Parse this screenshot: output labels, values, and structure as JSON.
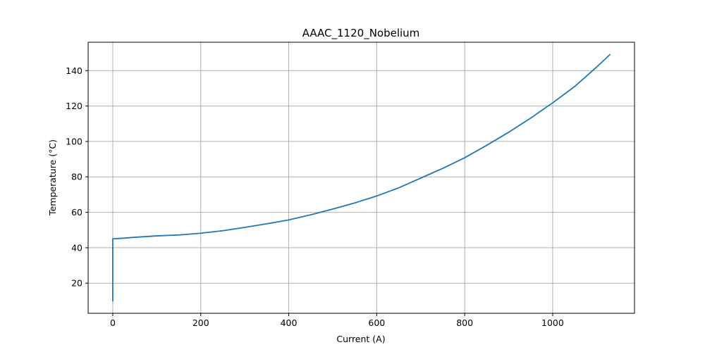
{
  "chart_data": {
    "type": "line",
    "title": "AAAC_1120_Nobelium",
    "xlabel": "Current (A)",
    "ylabel": "Temperature (°C)",
    "xlim": [
      -56,
      1186
    ],
    "ylim": [
      3.0,
      156.0
    ],
    "xticks": [
      0,
      200,
      400,
      600,
      800,
      1000
    ],
    "yticks": [
      20,
      40,
      60,
      80,
      100,
      120,
      140
    ],
    "grid": true,
    "legend": "none",
    "line_color": "#1f77b4",
    "series": [
      {
        "x": [
          0,
          0,
          0,
          25,
          50,
          75,
          100,
          150,
          200,
          250,
          300,
          350,
          400,
          450,
          500,
          550,
          600,
          650,
          700,
          750,
          800,
          850,
          900,
          950,
          1000,
          1050,
          1100,
          1130
        ],
        "y": [
          10.0,
          45.0,
          45.0,
          45.4,
          45.9,
          46.3,
          46.7,
          47.2,
          48.2,
          49.6,
          51.5,
          53.5,
          55.7,
          58.6,
          61.8,
          65.3,
          69.2,
          73.8,
          79.3,
          84.8,
          90.8,
          97.8,
          105.2,
          113.2,
          121.8,
          131.0,
          142.0,
          149.0
        ]
      }
    ]
  }
}
